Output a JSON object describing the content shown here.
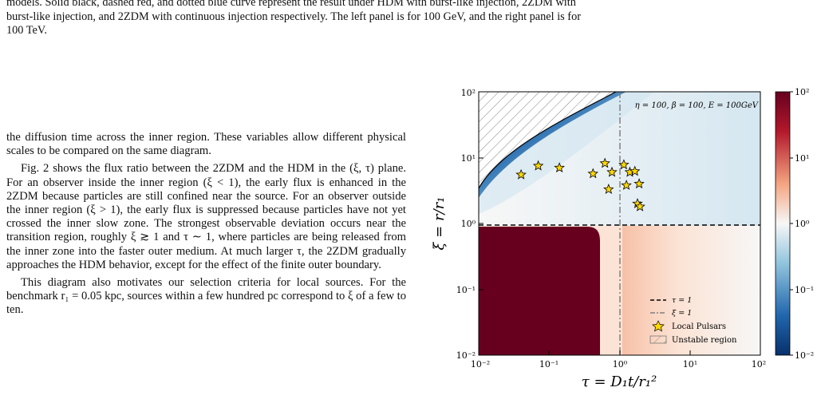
{
  "caption": {
    "lines": [
      "models. Solid black, dashed red, and dotted blue curve represent the result under HDM with burst-like injection, 2ZDM with",
      "burst-like injection, and 2ZDM with continuous injection respectively. The left panel is for 100 GeV, and the right panel is for",
      "100 TeV."
    ]
  },
  "body": {
    "paragraphs": [
      "the diffusion time across the inner region. These variables allow different physical scales to be compared on the same diagram.",
      "Fig. 2 shows the flux ratio between the 2ZDM and the HDM in the (ξ, τ) plane. For an observer inside the inner region (ξ < 1), the early flux is enhanced in the 2ZDM because particles are still confined near the source. For an observer outside the inner region (ξ > 1), the early flux is suppressed because particles have not yet crossed the inner slow zone. The strongest observable deviation occurs near the transition region, roughly ξ ≳ 1 and τ ∼ 1, where particles are being released from the inner zone into the faster outer medium. At much larger τ, the 2ZDM gradually approaches the HDM behavior, except for the effect of the finite outer boundary.",
      "This diagram also motivates our selection criteria for local sources. For the benchmark r₁ = 0.05 kpc, sources within a few hundred pc correspond to ξ of a few to ten."
    ]
  },
  "chart_data": {
    "type": "heatmap",
    "title": "",
    "annotation": "η = 100, β = 100, E = 100GeV",
    "xlabel": "τ = D₁t/r₁²",
    "ylabel": "ξ = r/r₁",
    "xscale": "log",
    "yscale": "log",
    "xlim": [
      0.01,
      100
    ],
    "ylim": [
      0.01,
      100
    ],
    "xticks": [
      "10⁻²",
      "10⁻¹",
      "10⁰",
      "10¹",
      "10²"
    ],
    "yticks": [
      "10⁻²",
      "10⁻¹",
      "10⁰",
      "10¹",
      "10²"
    ],
    "colorbar": {
      "scale": "log",
      "range": [
        0.01,
        100
      ],
      "ticks": [
        "10⁻²",
        "10⁻¹",
        "10⁰",
        "10¹",
        "10²"
      ],
      "low_color": "#08306b",
      "mid_color": "#f7f7f7",
      "high_color": "#67001f"
    },
    "reference_lines": [
      {
        "label": "τ = 1",
        "style": "dashed",
        "color": "#000000",
        "axis": "y",
        "value": 1
      },
      {
        "label": "ξ = 1",
        "style": "dashdot",
        "color": "#808080",
        "axis": "x",
        "value": 1
      }
    ],
    "pulsars": {
      "label": "Local Pulsars",
      "color": "#ffd700",
      "points": [
        {
          "tau": 0.04,
          "xi": 5.5
        },
        {
          "tau": 0.07,
          "xi": 7.5
        },
        {
          "tau": 0.14,
          "xi": 7.0
        },
        {
          "tau": 0.42,
          "xi": 5.7
        },
        {
          "tau": 0.62,
          "xi": 8.2
        },
        {
          "tau": 0.78,
          "xi": 6.0
        },
        {
          "tau": 0.7,
          "xi": 3.3
        },
        {
          "tau": 1.15,
          "xi": 7.8
        },
        {
          "tau": 1.25,
          "xi": 3.8
        },
        {
          "tau": 1.4,
          "xi": 6.0
        },
        {
          "tau": 1.65,
          "xi": 6.2
        },
        {
          "tau": 1.9,
          "xi": 4.0
        },
        {
          "tau": 1.8,
          "xi": 2.0
        },
        {
          "tau": 1.95,
          "xi": 1.8
        }
      ]
    },
    "unstable_region_label": "Unstable region"
  }
}
